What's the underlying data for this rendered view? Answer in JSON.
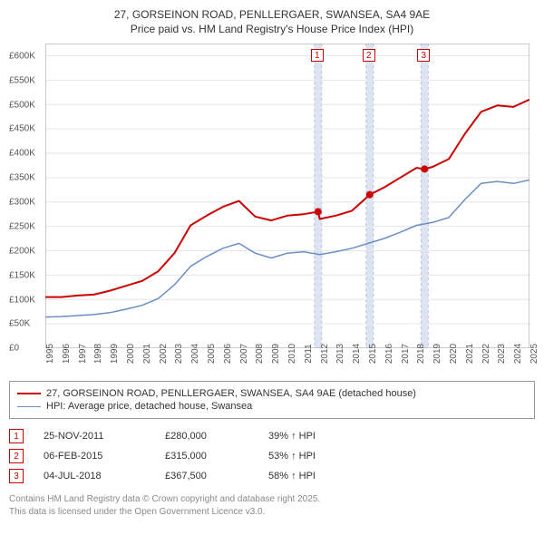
{
  "title": {
    "line1": "27, GORSEINON ROAD, PENLLERGAER, SWANSEA, SA4 9AE",
    "line2": "Price paid vs. HM Land Registry's House Price Index (HPI)",
    "fontsize": 12,
    "color": "#333333"
  },
  "chart": {
    "type": "line",
    "background_color": "#ffffff",
    "grid_color": "#e6e6e6",
    "axis_color": "#999999",
    "ylim": [
      0,
      625000
    ],
    "ytick_step": 50000,
    "yticks": [
      "£0",
      "£50K",
      "£100K",
      "£150K",
      "£200K",
      "£250K",
      "£300K",
      "£350K",
      "£400K",
      "£450K",
      "£500K",
      "£550K",
      "£600K"
    ],
    "xlim": [
      1995,
      2025
    ],
    "xticks": [
      "1995",
      "1996",
      "1997",
      "1998",
      "1999",
      "2000",
      "2001",
      "2002",
      "2003",
      "2004",
      "2005",
      "2006",
      "2007",
      "2008",
      "2009",
      "2010",
      "2011",
      "2012",
      "2013",
      "2014",
      "2015",
      "2016",
      "2017",
      "2018",
      "2019",
      "2020",
      "2021",
      "2022",
      "2023",
      "2024",
      "2025"
    ],
    "label_fontsize": 10,
    "label_color": "#555555",
    "vertical_bands": [
      {
        "x": 2011.9,
        "color": "#dce4f2",
        "width": 0.45
      },
      {
        "x": 2015.1,
        "color": "#dce4f2",
        "width": 0.45
      },
      {
        "x": 2018.5,
        "color": "#dce4f2",
        "width": 0.45
      }
    ],
    "series": [
      {
        "name": "price_paid",
        "color": "#cc0000",
        "line_width": 2,
        "label": "27, GORSEINON ROAD, PENLLERGAER, SWANSEA, SA4 9AE (detached house)",
        "points": [
          [
            1995,
            105000
          ],
          [
            1996,
            105000
          ],
          [
            1997,
            108000
          ],
          [
            1998,
            110000
          ],
          [
            1999,
            118000
          ],
          [
            2000,
            128000
          ],
          [
            2001,
            138000
          ],
          [
            2002,
            158000
          ],
          [
            2003,
            195000
          ],
          [
            2004,
            252000
          ],
          [
            2005,
            272000
          ],
          [
            2006,
            290000
          ],
          [
            2007,
            302000
          ],
          [
            2008,
            270000
          ],
          [
            2009,
            262000
          ],
          [
            2010,
            272000
          ],
          [
            2011,
            275000
          ],
          [
            2011.9,
            280000
          ],
          [
            2012,
            265000
          ],
          [
            2013,
            272000
          ],
          [
            2014,
            282000
          ],
          [
            2015.1,
            315000
          ],
          [
            2016,
            330000
          ],
          [
            2017,
            350000
          ],
          [
            2018,
            370000
          ],
          [
            2018.5,
            367500
          ],
          [
            2019,
            372000
          ],
          [
            2020,
            388000
          ],
          [
            2021,
            440000
          ],
          [
            2022,
            485000
          ],
          [
            2023,
            498000
          ],
          [
            2024,
            495000
          ],
          [
            2025,
            510000
          ]
        ],
        "markers": [
          {
            "x": 2011.9,
            "y": 280000
          },
          {
            "x": 2015.1,
            "y": 315000
          },
          {
            "x": 2018.5,
            "y": 367500
          }
        ]
      },
      {
        "name": "hpi",
        "color": "#6a8fc7",
        "line_width": 1.5,
        "label": "HPI: Average price, detached house, Swansea",
        "points": [
          [
            1995,
            64000
          ],
          [
            1996,
            65000
          ],
          [
            1997,
            67000
          ],
          [
            1998,
            69000
          ],
          [
            1999,
            73000
          ],
          [
            2000,
            80000
          ],
          [
            2001,
            88000
          ],
          [
            2002,
            102000
          ],
          [
            2003,
            130000
          ],
          [
            2004,
            168000
          ],
          [
            2005,
            188000
          ],
          [
            2006,
            205000
          ],
          [
            2007,
            215000
          ],
          [
            2008,
            195000
          ],
          [
            2009,
            185000
          ],
          [
            2010,
            195000
          ],
          [
            2011,
            198000
          ],
          [
            2012,
            192000
          ],
          [
            2013,
            198000
          ],
          [
            2014,
            205000
          ],
          [
            2015,
            215000
          ],
          [
            2016,
            225000
          ],
          [
            2017,
            238000
          ],
          [
            2018,
            252000
          ],
          [
            2019,
            258000
          ],
          [
            2020,
            268000
          ],
          [
            2021,
            305000
          ],
          [
            2022,
            338000
          ],
          [
            2023,
            342000
          ],
          [
            2024,
            338000
          ],
          [
            2025,
            345000
          ]
        ]
      }
    ],
    "chart_markers": [
      {
        "id": "1",
        "x": 2011.9,
        "border_color": "#cc0000",
        "text_color": "#cc0000"
      },
      {
        "id": "2",
        "x": 2015.1,
        "border_color": "#cc0000",
        "text_color": "#cc0000"
      },
      {
        "id": "3",
        "x": 2018.5,
        "border_color": "#cc0000",
        "text_color": "#cc0000"
      }
    ]
  },
  "legend": {
    "items": [
      {
        "color": "#cc0000",
        "width": 2,
        "label": "27, GORSEINON ROAD, PENLLERGAER, SWANSEA, SA4 9AE (detached house)"
      },
      {
        "color": "#6a8fc7",
        "width": 1.5,
        "label": "HPI: Average price, detached house, Swansea"
      }
    ],
    "border_color": "#999999",
    "fontsize": 11
  },
  "sales": [
    {
      "marker": "1",
      "date": "25-NOV-2011",
      "price": "£280,000",
      "delta": "39% ↑ HPI"
    },
    {
      "marker": "2",
      "date": "06-FEB-2015",
      "price": "£315,000",
      "delta": "53% ↑ HPI"
    },
    {
      "marker": "3",
      "date": "04-JUL-2018",
      "price": "£367,500",
      "delta": "58% ↑ HPI"
    }
  ],
  "footer": {
    "line1": "Contains HM Land Registry data © Crown copyright and database right 2025.",
    "line2": "This data is licensed under the Open Government Licence v3.0.",
    "color": "#8a8a8a",
    "fontsize": 10
  }
}
